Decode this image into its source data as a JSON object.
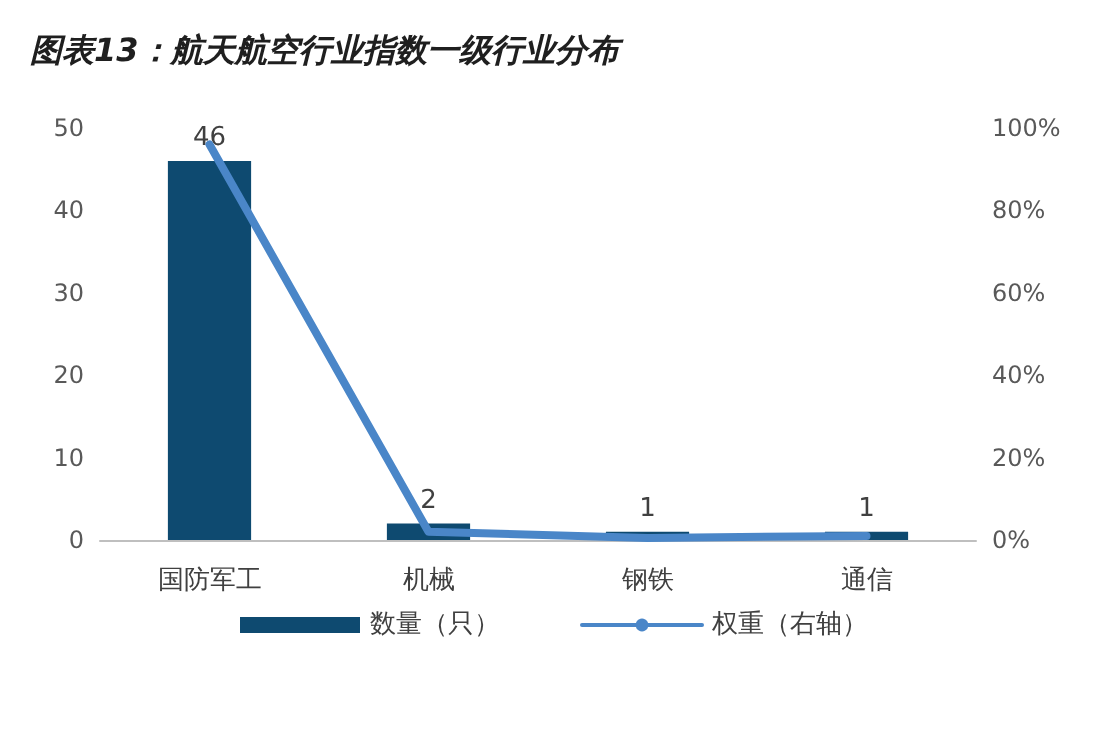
{
  "chart_data": {
    "type": "bar",
    "title": "图表13：航天航空行业指数一级行业分布",
    "categories": [
      "国防军工",
      "机械",
      "钢铁",
      "通信"
    ],
    "series": [
      {
        "name": "数量（只）",
        "color": "#0e4a70",
        "values": [
          46,
          2,
          1,
          1
        ],
        "value_labels": [
          "46",
          "2",
          "1",
          "1"
        ]
      },
      {
        "name": "权重（右轴）",
        "type": "line",
        "axis": "y2",
        "color": "#4a86c8",
        "values": [
          96,
          2,
          0.5,
          1
        ],
        "marker": "none"
      }
    ],
    "ylim": [
      0,
      50
    ],
    "yticks": [
      0,
      10,
      20,
      30,
      40,
      50
    ],
    "y2lim": [
      0,
      100
    ],
    "y2ticks": [
      {
        "value": 0,
        "label": "0%"
      },
      {
        "value": 20,
        "label": "20%"
      },
      {
        "value": 40,
        "label": "40%"
      },
      {
        "value": 60,
        "label": "60%"
      },
      {
        "value": 80,
        "label": "80%"
      },
      {
        "value": 100,
        "label": "100%"
      }
    ],
    "grid": false,
    "legend": "bottom"
  }
}
